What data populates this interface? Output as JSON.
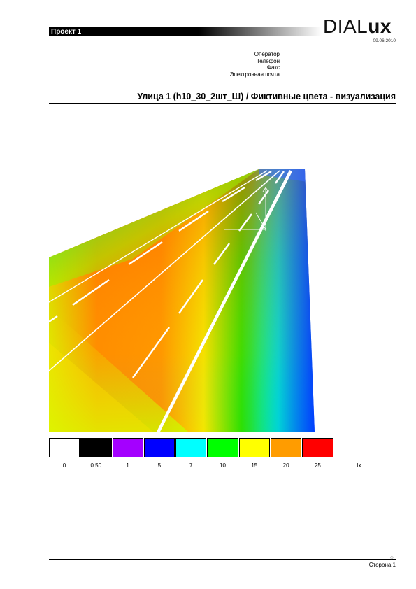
{
  "header": {
    "project_title": "Проект 1",
    "logo_light": "DIAL",
    "logo_bold": "ux",
    "date": "09.06.2010"
  },
  "contact": {
    "operator": "Оператор",
    "phone": "Телефон",
    "fax": "Факс",
    "email": "Электронная почта"
  },
  "section_title": "Улица 1 (h10_30_2шт_Ш) / Фиктивные цвета - визуализация",
  "legend": {
    "swatches": [
      {
        "value": "0",
        "color": "#ffffff"
      },
      {
        "value": "0.50",
        "color": "#000000"
      },
      {
        "value": "1",
        "color": "#a400ff"
      },
      {
        "value": "5",
        "color": "#0000ff"
      },
      {
        "value": "7",
        "color": "#00ffff"
      },
      {
        "value": "10",
        "color": "#00ff00"
      },
      {
        "value": "15",
        "color": "#ffff00"
      },
      {
        "value": "20",
        "color": "#ff9c00"
      },
      {
        "value": "25",
        "color": "#ff0000"
      }
    ],
    "unit": "lx"
  },
  "footer": {
    "page_label": "Сторона 1",
    "mark": "◇"
  }
}
